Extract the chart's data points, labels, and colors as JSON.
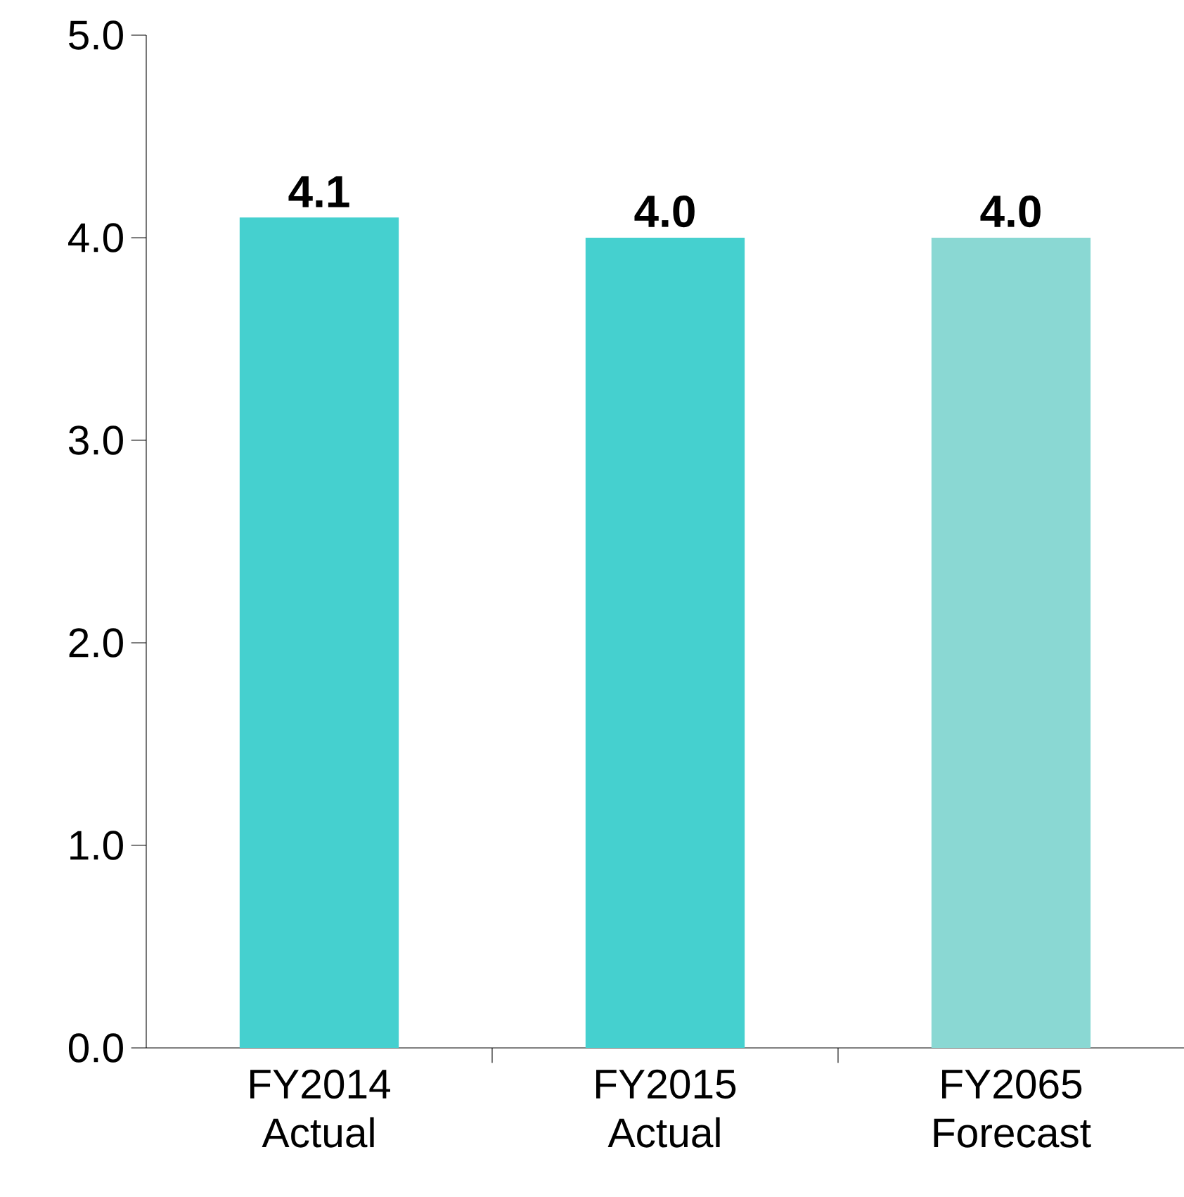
{
  "chart_data": {
    "type": "bar",
    "categories": [
      "FY2014 Actual",
      "FY2015 Actual",
      "FY2065 Forecast"
    ],
    "values": [
      4.1,
      4.0,
      4.0
    ],
    "colors": [
      "#45d0cf",
      "#45d0cf",
      "#8ad8d3"
    ],
    "ylim": [
      0,
      5
    ],
    "yticks": [
      {
        "value": 0,
        "label": "0.0"
      },
      {
        "value": 1,
        "label": "1.0"
      },
      {
        "value": 2,
        "label": "2.0"
      },
      {
        "value": 3,
        "label": "3.0"
      },
      {
        "value": 4,
        "label": "4.0"
      },
      {
        "value": 5,
        "label": "5.0"
      }
    ],
    "value_labels": [
      "4.1",
      "4.0",
      "4.0"
    ],
    "grid": false
  }
}
